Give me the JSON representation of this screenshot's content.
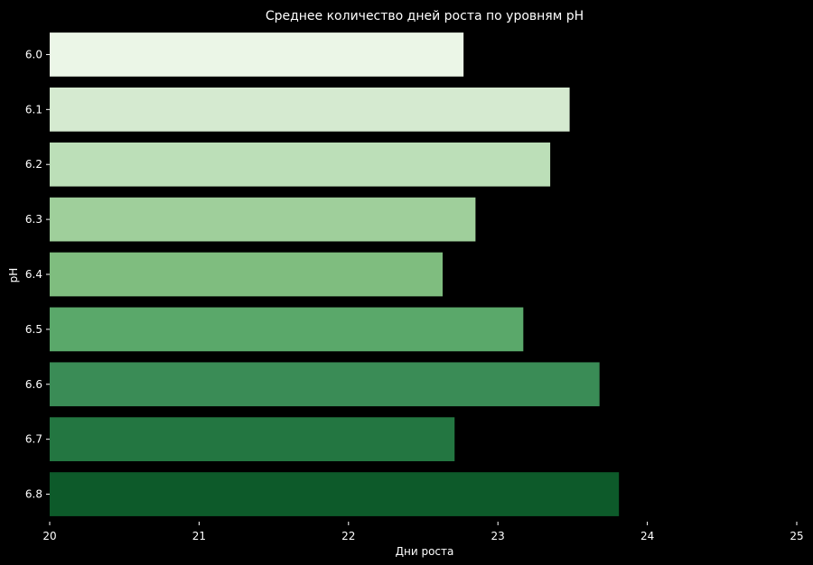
{
  "chart_data": {
    "type": "bar",
    "orientation": "horizontal",
    "title": "Среднее количество дней роста по уровням pH",
    "xlabel": "Дни роста",
    "ylabel": "pH",
    "categories": [
      "6.0",
      "6.1",
      "6.2",
      "6.3",
      "6.4",
      "6.5",
      "6.6",
      "6.7",
      "6.8"
    ],
    "values": [
      22.77,
      23.48,
      23.35,
      22.85,
      22.63,
      23.17,
      23.68,
      22.71,
      23.81
    ],
    "colors": [
      "#ebf6e7",
      "#d5ead0",
      "#bcdfb8",
      "#9fcf9b",
      "#7fbd7f",
      "#5aa86a",
      "#3a8c56",
      "#237641",
      "#0d5a2a"
    ],
    "xlim": [
      20,
      25
    ],
    "xticks": [
      "20",
      "21",
      "22",
      "23",
      "24",
      "25"
    ],
    "grid": false,
    "background": "#000000"
  }
}
